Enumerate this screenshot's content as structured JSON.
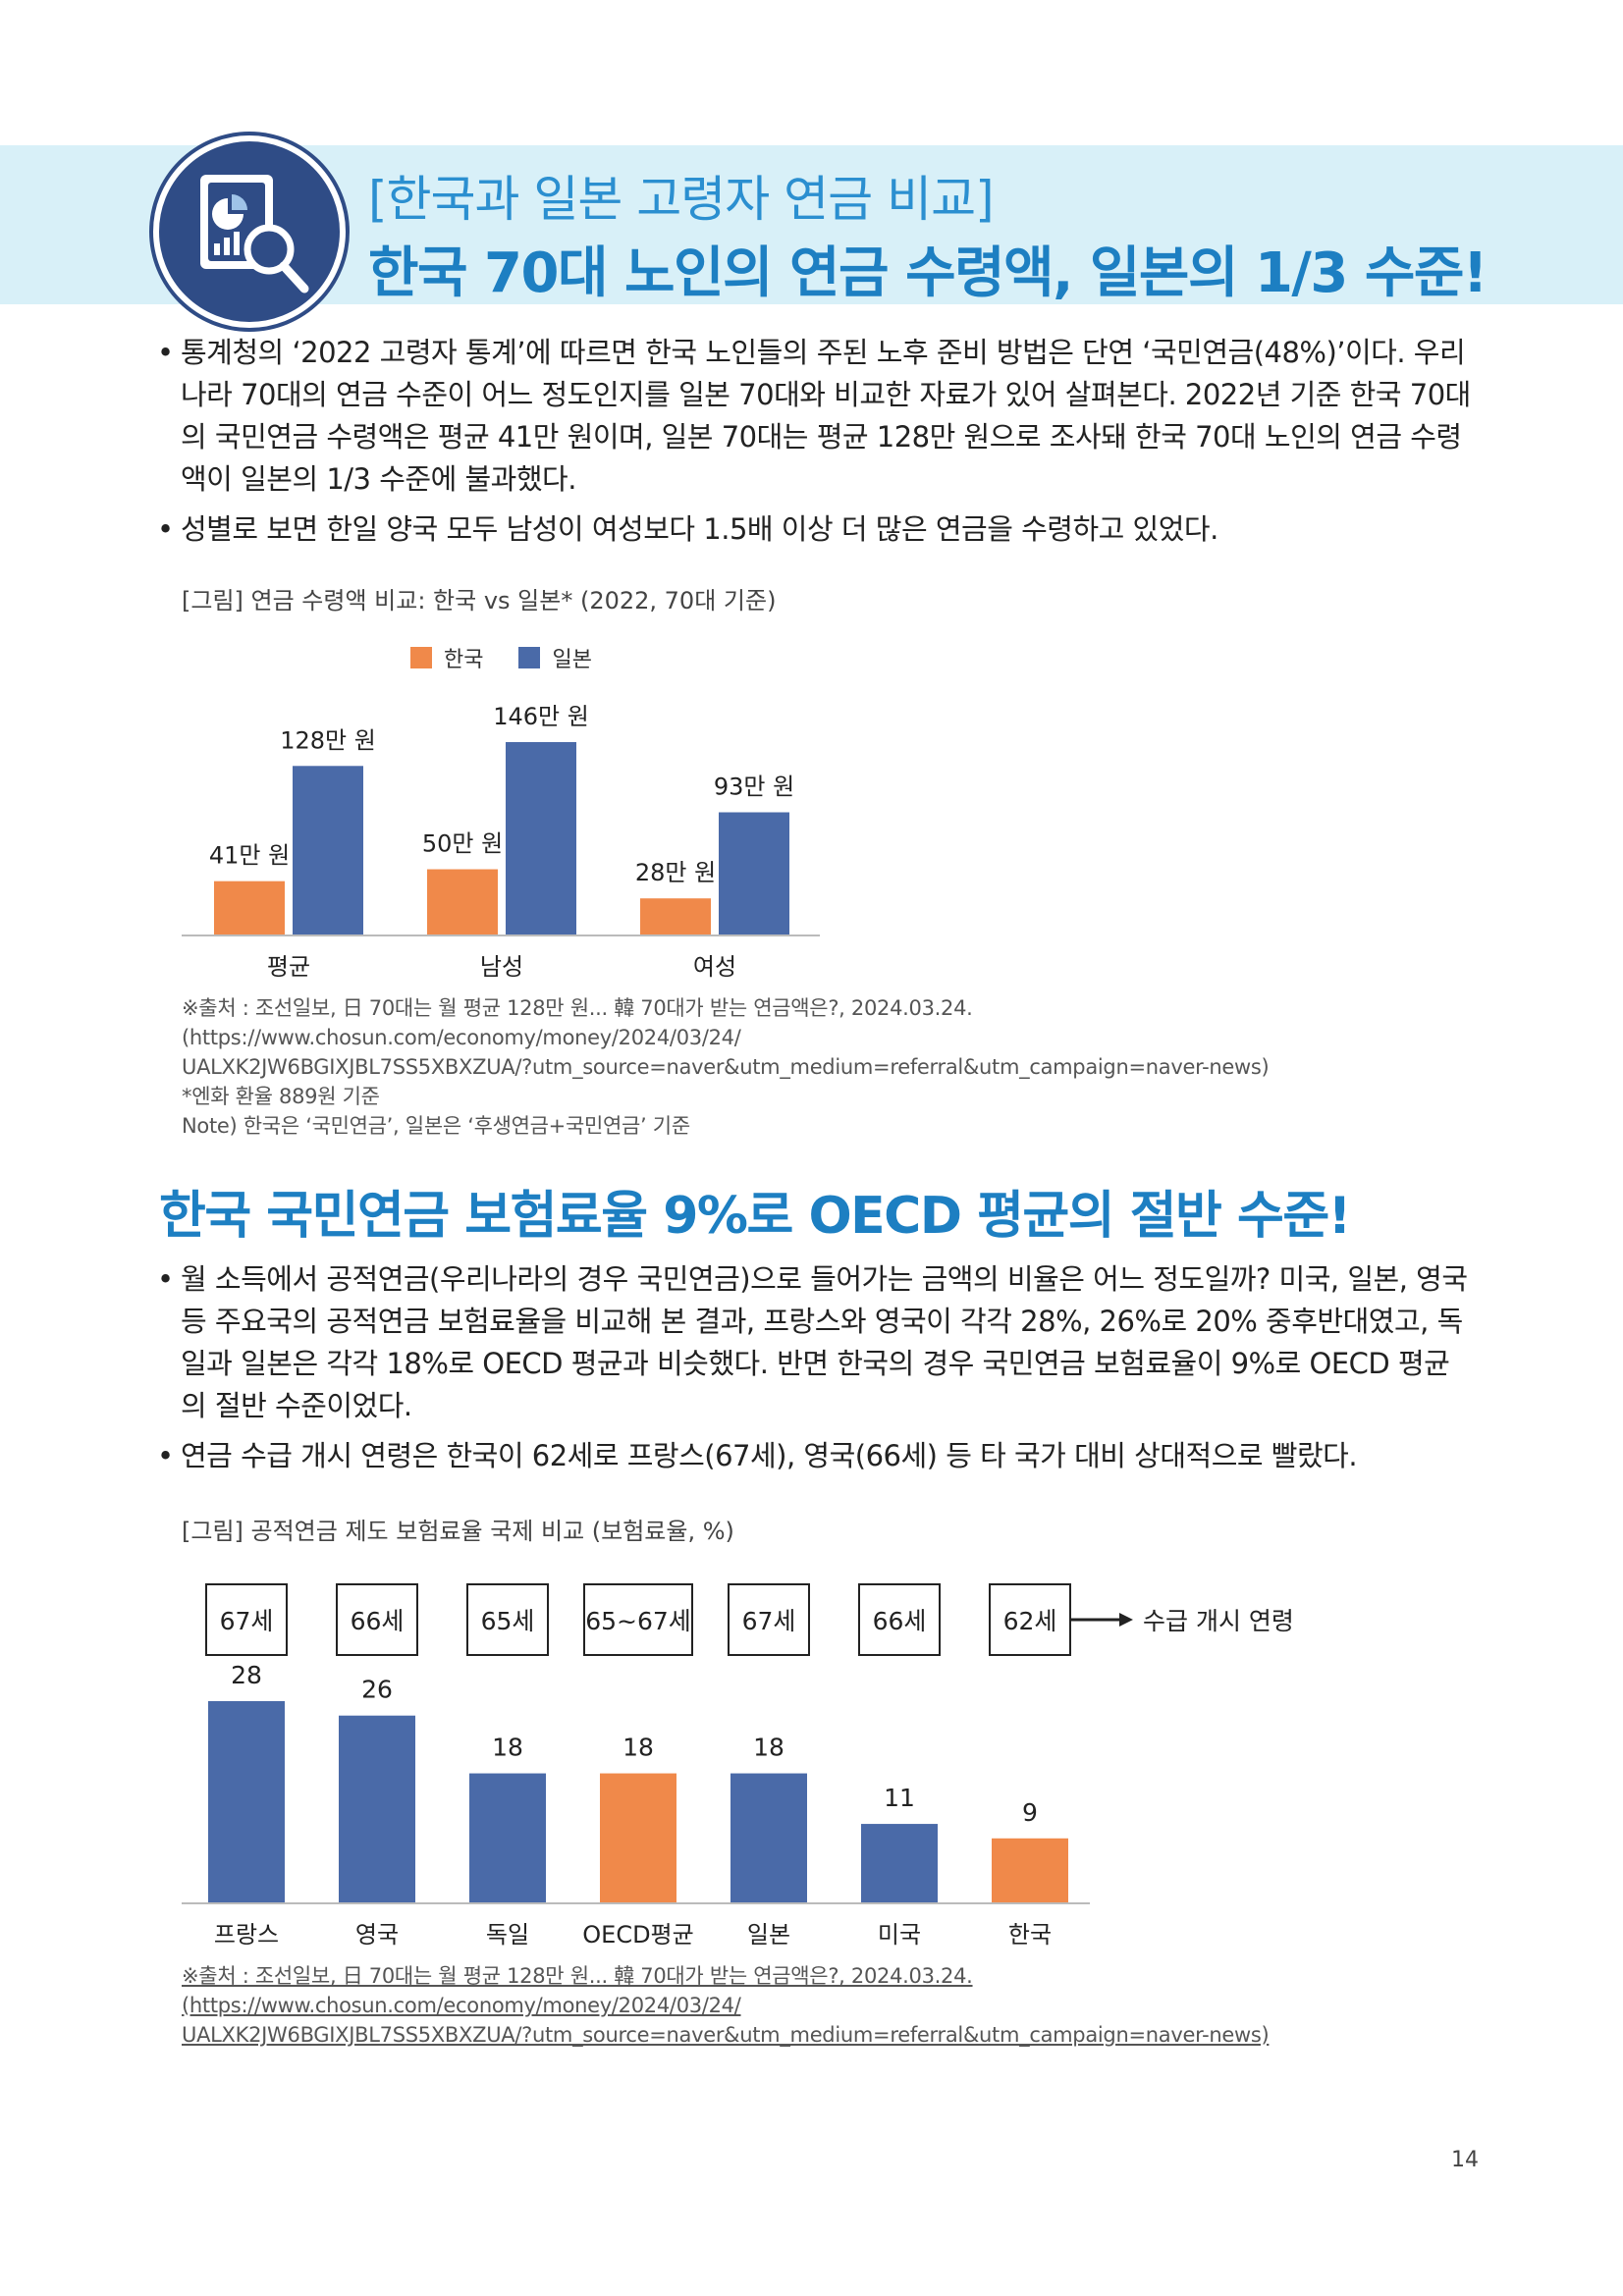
{
  "header": {
    "kicker": "[한국과 일본 고령자 연금 비교]",
    "headline": "한국 70대 노인의 연금 수령액, 일본의 1/3 수준!",
    "icon": "chart-magnifier-icon"
  },
  "section1": {
    "bullets": [
      "통계청의 ‘2022 고령자 통계’에 따르면 한국 노인들의 주된 노후 준비 방법은 단연 ‘국민연금(48%)’이다. 우리나라 70대의 연금 수준이 어느 정도인지를 일본 70대와 비교한 자료가 있어 살펴본다. 2022년 기준 한국 70대의 국민연금 수령액은 평균 41만 원이며, 일본 70대는 평균 128만 원으로 조사돼 한국 70대 노인의 연금 수령액이 일본의 1/3 수준에 불과했다.",
      "성별로 보면 한일 양국 모두 남성이 여성보다 1.5배 이상 더 많은 연금을 수령하고 있었다."
    ],
    "figure_caption": "[그림] 연금 수령액 비교: 한국 vs 일본* (2022, 70대 기준)",
    "legend": [
      "한국",
      "일본"
    ],
    "source_lines": [
      "※출처 : 조선일보, 日 70대는 월 평균 128만 원... 韓 70대가 받는 연금액은?, 2024.03.24. (https://www.chosun.com/economy/money/2024/03/24/",
      "UALXK2JW6BGIXJBL7SS5XBXZUA/?utm_source=naver&utm_medium=referral&utm_campaign=naver-news)",
      "*엔화 환율 889원 기준",
      "Note) 한국은 ‘국민연금’, 일본은 ‘후생연금+국민연금’ 기준"
    ]
  },
  "section2": {
    "heading": "한국 국민연금 보험료율 9%로 OECD 평균의 절반 수준!",
    "bullets": [
      "월 소득에서 공적연금(우리나라의 경우 국민연금)으로 들어가는 금액의 비율은 어느 정도일까? 미국, 일본, 영국 등 주요국의 공적연금 보험료율을 비교해 본 결과, 프랑스와 영국이 각각 28%, 26%로 20% 중후반대였고, 독일과 일본은 각각 18%로 OECD 평균과 비슷했다. 반면 한국의 경우 국민연금 보험료율이 9%로 OECD 평균의 절반 수준이었다.",
      "연금 수급 개시 연령은 한국이 62세로 프랑스(67세), 영국(66세) 등 타 국가 대비 상대적으로 빨랐다."
    ],
    "figure_caption": "[그림] 공적연금 제도 보험료율 국제 비교 (보험료율, %)",
    "age_note": "수급 개시 연령",
    "source_lines": [
      "※출처 : 조선일보, 日 70대는 월 평균 128만 원... 韓 70대가 받는 연금액은?, 2024.03.24. (https://www.chosun.com/economy/money/2024/03/24/",
      "UALXK2JW6BGIXJBL7SS5XBXZUA/?utm_source=naver&utm_medium=referral&utm_campaign=naver-news)"
    ]
  },
  "colors": {
    "korea": "#f0894a",
    "japan": "#4a6aa8",
    "accent": "#1d7fc2",
    "banner": "#d8f0f8"
  },
  "page_number": "14",
  "chart_data": [
    {
      "type": "bar",
      "title": "",
      "categories": [
        "평균",
        "남성",
        "여성"
      ],
      "series": [
        {
          "name": "한국",
          "values": [
            41,
            50,
            28
          ],
          "labels": [
            "41만 원",
            "50만 원",
            "28만 원"
          ]
        },
        {
          "name": "일본",
          "values": [
            128,
            146,
            93
          ],
          "labels": [
            "128만 원",
            "146만 원",
            "93만 원"
          ]
        }
      ],
      "ylabel": "",
      "ylim": [
        0,
        146
      ],
      "grid": false,
      "legend": "top"
    },
    {
      "type": "bar",
      "title": "",
      "categories": [
        "프랑스",
        "영국",
        "독일",
        "OECD평균",
        "일본",
        "미국",
        "한국"
      ],
      "values": [
        28,
        26,
        18,
        18,
        18,
        11,
        9
      ],
      "highlight": [
        false,
        false,
        false,
        true,
        false,
        false,
        true
      ],
      "ages": [
        "67세",
        "66세",
        "65세",
        "65~67세",
        "67세",
        "66세",
        "62세"
      ],
      "ylabel": "",
      "ylim": [
        0,
        28
      ],
      "grid": false
    }
  ]
}
